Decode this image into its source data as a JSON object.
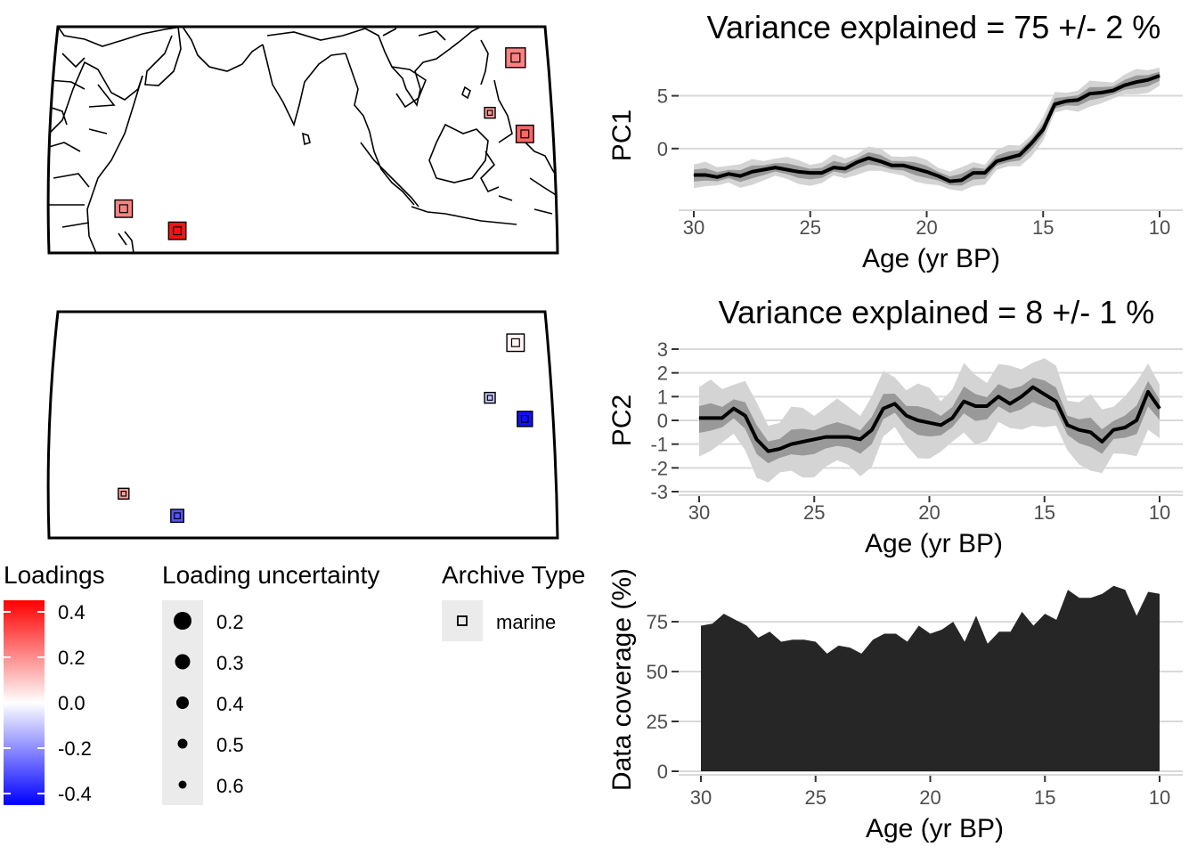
{
  "maps": [
    {
      "sites": [
        {
          "lon": 98.0,
          "lat": 22.7,
          "loading": 0.22,
          "uncertainty": 0.2
        },
        {
          "lon": 92.5,
          "lat": 11.5,
          "loading": 0.18,
          "uncertainty": 0.6
        },
        {
          "lon": 100.0,
          "lat": 7.2,
          "loading": 0.27,
          "uncertainty": 0.3
        },
        {
          "lon": 14.0,
          "lat": -8.0,
          "loading": 0.22,
          "uncertainty": 0.3
        },
        {
          "lon": 25.5,
          "lat": -12.5,
          "loading": 0.42,
          "uncertainty": 0.3
        }
      ]
    },
    {
      "sites": [
        {
          "lon": 98.0,
          "lat": 22.7,
          "loading": 0.02,
          "uncertainty": 0.3
        },
        {
          "lon": 92.5,
          "lat": 11.5,
          "loading": -0.1,
          "uncertainty": 0.6
        },
        {
          "lon": 100.0,
          "lat": 7.2,
          "loading": -0.42,
          "uncertainty": 0.4
        },
        {
          "lon": 14.0,
          "lat": -8.0,
          "loading": 0.17,
          "uncertainty": 0.6
        },
        {
          "lon": 25.5,
          "lat": -12.5,
          "loading": -0.3,
          "uncertainty": 0.5
        }
      ]
    }
  ],
  "legend": {
    "loadings": {
      "title": "Loadings",
      "labels": [
        "0.4",
        "0.2",
        "0.0",
        "-0.2",
        "-0.4"
      ],
      "colors": {
        "high": "#ff0000",
        "mid": "#ffffff",
        "low": "#0000ff"
      }
    },
    "uncertainty": {
      "title": "Loading uncertainty",
      "labels": [
        "0.2",
        "0.3",
        "0.4",
        "0.5",
        "0.6"
      ]
    },
    "archive": {
      "title": "Archive Type",
      "label": "marine"
    }
  },
  "chart_data": [
    {
      "type": "line",
      "title": "Variance explained = 75 +/- 2 %",
      "xlabel": "Age (yr BP)",
      "ylabel": "PC1",
      "xlim": [
        30,
        10
      ],
      "ylim": [
        -5.5,
        8
      ],
      "x_reversed": true,
      "xticks": [
        "30",
        "25",
        "20",
        "15",
        "10"
      ],
      "yticks": [
        "0",
        "5"
      ],
      "x": [
        30,
        29.5,
        29,
        28.5,
        28,
        27.5,
        27,
        26.5,
        26,
        25.5,
        25,
        24.5,
        24,
        23.5,
        23,
        22.5,
        22,
        21.5,
        21,
        20.5,
        20,
        19.5,
        19,
        18.5,
        18,
        17.5,
        17,
        16.5,
        16,
        15.5,
        15,
        14.5,
        14,
        13.5,
        13,
        12.5,
        12,
        11.5,
        11,
        10.5,
        10
      ],
      "y": [
        -2.5,
        -2.5,
        -2.7,
        -2.4,
        -2.6,
        -2.2,
        -2.0,
        -1.8,
        -2.0,
        -2.2,
        -2.3,
        -2.3,
        -1.8,
        -1.9,
        -1.3,
        -0.9,
        -1.2,
        -1.6,
        -1.6,
        -1.9,
        -2.2,
        -2.6,
        -3.1,
        -3.0,
        -2.3,
        -2.3,
        -1.2,
        -0.9,
        -0.6,
        0.5,
        1.8,
        4.2,
        4.5,
        4.6,
        5.2,
        5.3,
        5.5,
        6.0,
        6.3,
        6.5,
        6.9
      ],
      "bands": [
        {
          "name": "inner",
          "halfwidth": 0.5,
          "color": "#999999"
        },
        {
          "name": "outer",
          "halfwidth": 1.0,
          "color": "#d4d4d4"
        }
      ],
      "grid": true
    },
    {
      "type": "line",
      "title": "Variance explained = 8 +/- 1 %",
      "xlabel": "Age (yr BP)",
      "ylabel": "PC2",
      "xlim": [
        30,
        10
      ],
      "ylim": [
        -3,
        3
      ],
      "x_reversed": true,
      "xticks": [
        "30",
        "25",
        "20",
        "15",
        "10"
      ],
      "yticks": [
        "3",
        "2",
        "1",
        "0",
        "-1",
        "-2",
        "-3"
      ],
      "x": [
        30,
        29.5,
        29,
        28.5,
        28,
        27.5,
        27,
        26.5,
        26,
        25.5,
        25,
        24.5,
        24,
        23.5,
        23,
        22.5,
        22,
        21.5,
        21,
        20.5,
        20,
        19.5,
        19,
        18.5,
        18,
        17.5,
        17,
        16.5,
        16,
        15.5,
        15,
        14.5,
        14,
        13.5,
        13,
        12.5,
        12,
        11.5,
        11,
        10.5,
        10
      ],
      "y": [
        0.1,
        0.1,
        0.1,
        0.5,
        0.2,
        -0.8,
        -1.3,
        -1.2,
        -1.0,
        -0.9,
        -0.8,
        -0.7,
        -0.7,
        -0.7,
        -0.8,
        -0.4,
        0.5,
        0.7,
        0.2,
        0.0,
        -0.1,
        -0.2,
        0.1,
        0.8,
        0.6,
        0.6,
        1.0,
        0.7,
        1.0,
        1.4,
        1.1,
        0.8,
        -0.2,
        -0.4,
        -0.5,
        -0.9,
        -0.4,
        -0.3,
        0.0,
        1.2,
        0.5
      ],
      "bands": [
        {
          "name": "inner",
          "halfwidth": 0.5,
          "color": "#999999"
        },
        {
          "name": "outer",
          "halfwidth": 1.3,
          "color": "#d4d4d4"
        }
      ],
      "grid": true
    },
    {
      "type": "area",
      "title": "",
      "xlabel": "Age (yr BP)",
      "ylabel": "Data coverage (%)",
      "xlim": [
        30,
        10
      ],
      "ylim": [
        0,
        92
      ],
      "x_reversed": true,
      "xticks": [
        "30",
        "25",
        "20",
        "15",
        "10"
      ],
      "yticks": [
        "75",
        "50",
        "25",
        "0"
      ],
      "x": [
        30,
        29.5,
        29,
        28.5,
        28,
        27.5,
        27,
        26.5,
        26,
        25.5,
        25,
        24.5,
        24,
        23.5,
        23,
        22.5,
        22,
        21.5,
        21,
        20.5,
        20,
        19.5,
        19,
        18.5,
        18,
        17.5,
        17,
        16.5,
        16,
        15.5,
        15,
        14.5,
        14,
        13.5,
        13,
        12.5,
        12,
        11.5,
        11,
        10.5,
        10
      ],
      "y": [
        73,
        74,
        79,
        76,
        73,
        67,
        70,
        65,
        66,
        66,
        65,
        59,
        63,
        62,
        59,
        66,
        69,
        69,
        65,
        73,
        69,
        71,
        75,
        65,
        78,
        64,
        70,
        70,
        80,
        73,
        79,
        76,
        91,
        87,
        87,
        89,
        93,
        91,
        78,
        90,
        89
      ],
      "color": "#262626",
      "grid": true
    }
  ]
}
